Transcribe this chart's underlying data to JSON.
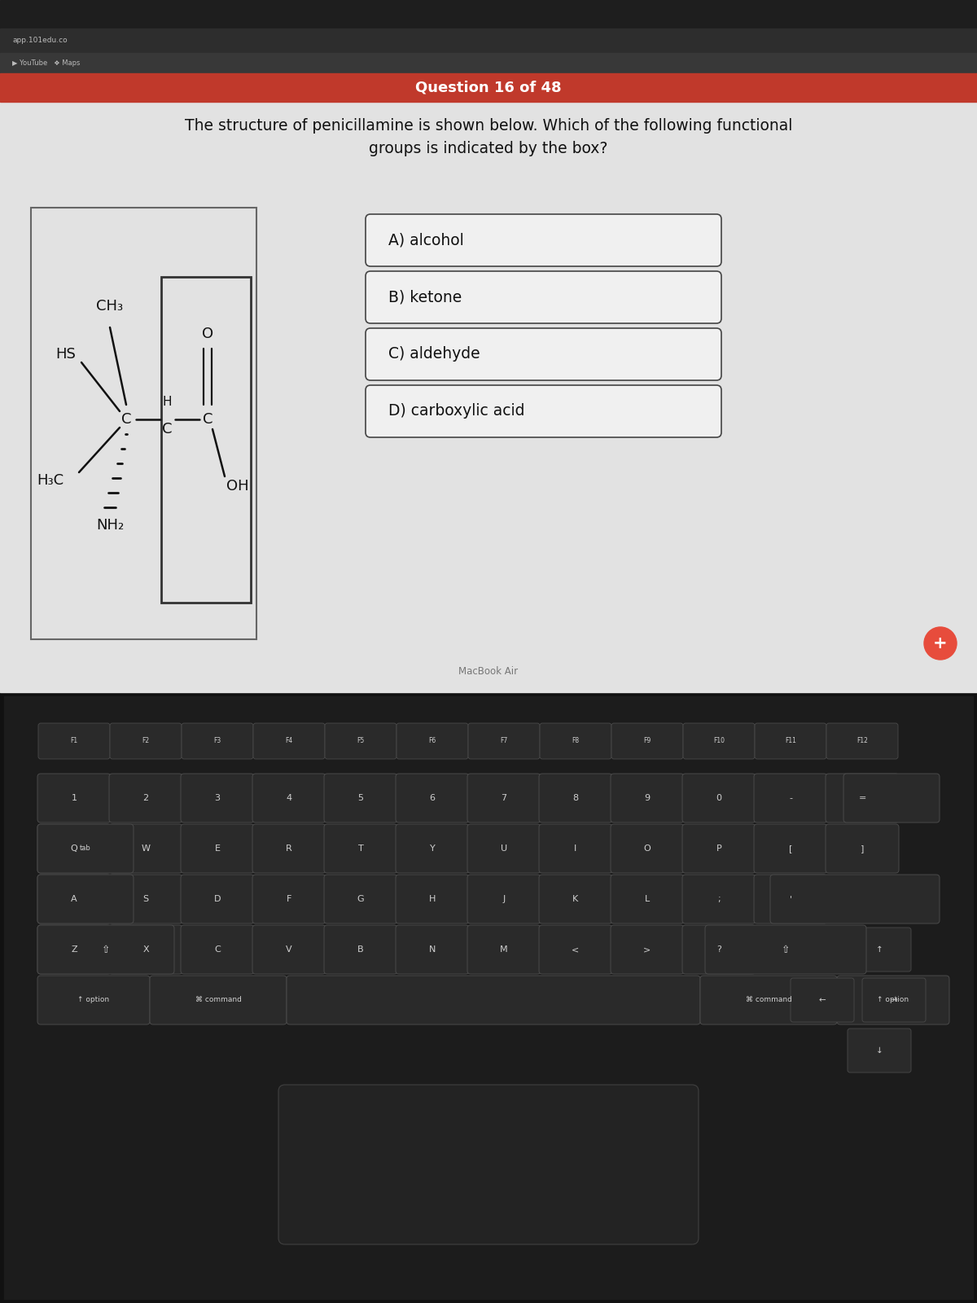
{
  "question_header": "Question 16 of 48",
  "question_text": "The structure of penicillamine is shown below. Which of the following functional\ngroups is indicated by the box?",
  "header_bg": "#c0392b",
  "header_text_color": "#ffffff",
  "page_bg": "#c8c8c8",
  "content_bg": "#e2e2e2",
  "answer_options": [
    "A) alcohol",
    "B) ketone",
    "C) aldehyde",
    "D) carboxylic acid"
  ],
  "answer_box_color": "#f0f0f0",
  "answer_border_color": "#444444",
  "title_fontsize": 13,
  "question_fontsize": 14,
  "answer_fontsize": 14
}
